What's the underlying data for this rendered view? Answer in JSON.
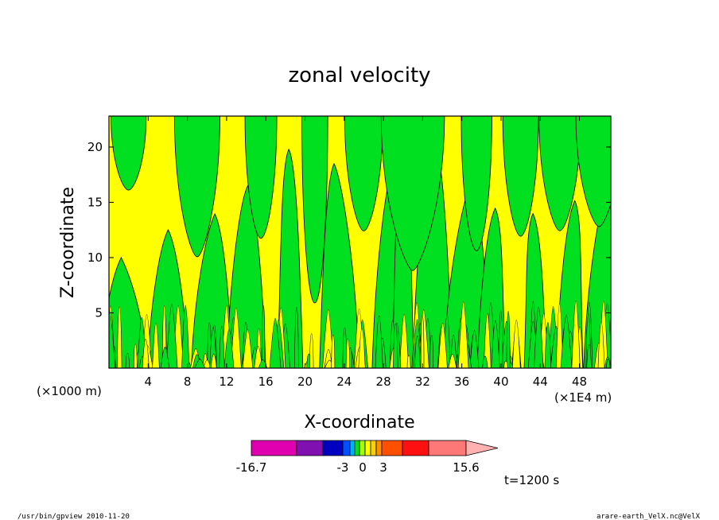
{
  "chart_data": {
    "type": "heatmap",
    "title": "zonal velocity",
    "xlabel": "X-coordinate",
    "ylabel": "Z-coordinate",
    "x_unit_left": "(×1000 m)",
    "x_unit_right": "(×1E4 m)",
    "xlim": [
      0,
      51.2
    ],
    "ylim": [
      0,
      22.8
    ],
    "xticks": [
      4,
      8,
      12,
      16,
      20,
      24,
      28,
      32,
      36,
      40,
      44,
      48
    ],
    "yticks": [
      5,
      10,
      15,
      20
    ],
    "colorbar": {
      "colors": [
        "#e000b0",
        "#8010b0",
        "#0000c0",
        "#0050ff",
        "#00b0ff",
        "#00e020",
        "#a0ff00",
        "#ffff00",
        "#ffd000",
        "#ff9000",
        "#ff5000",
        "#ff1010",
        "#ff7878",
        "#ffb0b0"
      ],
      "labels": [
        "-16.7",
        "-3",
        "0",
        "3",
        "15.6"
      ]
    },
    "time_label": "t=1200 s",
    "contour_colors": {
      "positive": "#ffff00",
      "negative": "#00e020"
    }
  },
  "footer": {
    "left": "/usr/bin/gpview  2010-11-20",
    "right": "arare-earth_VelX.nc@VelX"
  }
}
